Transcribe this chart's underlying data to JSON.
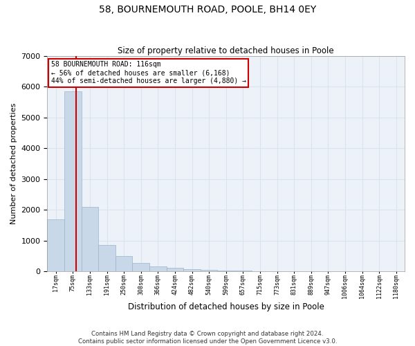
{
  "title1": "58, BOURNEMOUTH ROAD, POOLE, BH14 0EY",
  "title2": "Size of property relative to detached houses in Poole",
  "xlabel": "Distribution of detached houses by size in Poole",
  "ylabel": "Number of detached properties",
  "bar_labels": [
    "17sqm",
    "75sqm",
    "133sqm",
    "191sqm",
    "250sqm",
    "308sqm",
    "366sqm",
    "424sqm",
    "482sqm",
    "540sqm",
    "599sqm",
    "657sqm",
    "715sqm",
    "773sqm",
    "831sqm",
    "889sqm",
    "947sqm",
    "1006sqm",
    "1064sqm",
    "1122sqm",
    "1180sqm"
  ],
  "bar_heights": [
    1700,
    5850,
    2100,
    850,
    500,
    280,
    160,
    120,
    80,
    50,
    30,
    20,
    15,
    10,
    8,
    6,
    4,
    3,
    2,
    1,
    1
  ],
  "bar_color": "#c8d8e8",
  "bar_edge_color": "#9ab4cc",
  "red_line_x": 1.207,
  "annotation_text": "58 BOURNEMOUTH ROAD: 116sqm\n← 56% of detached houses are smaller (6,168)\n44% of semi-detached houses are larger (4,880) →",
  "annotation_box_color": "#ffffff",
  "annotation_box_edge": "#cc0000",
  "grid_color": "#d8e4f0",
  "bg_color": "#edf2f8",
  "ylim": [
    0,
    7000
  ],
  "yticks": [
    0,
    1000,
    2000,
    3000,
    4000,
    5000,
    6000,
    7000
  ],
  "footer1": "Contains HM Land Registry data © Crown copyright and database right 2024.",
  "footer2": "Contains public sector information licensed under the Open Government Licence v3.0."
}
